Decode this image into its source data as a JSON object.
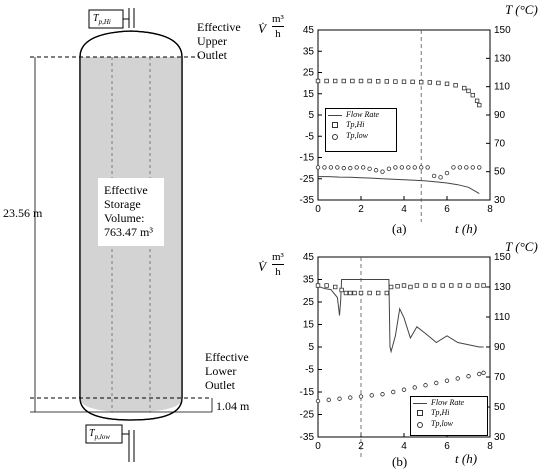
{
  "tank": {
    "sensor_top": "T",
    "sensor_top_sub": "p,Hi",
    "sensor_bottom": "T",
    "sensor_bottom_sub": "p,low",
    "upper_outlet": [
      "Effective",
      "Upper",
      "Outlet"
    ],
    "lower_outlet": [
      "Effective",
      "Lower",
      "Outlet"
    ],
    "volume_label": [
      "Effective",
      "Storage",
      "Volume:",
      "763.47 m³"
    ],
    "height_label": "23.56 m",
    "bottom_offset_label": "1.04 m"
  },
  "charts": {
    "a": {
      "panel_label": "(a)",
      "xlabel": "t (h)",
      "left_label": "V̇",
      "unit_top": "m³",
      "unit_bottom": "h",
      "right_label": "T (°C)",
      "legend": [
        "Flow Rate",
        "Tp,Hi",
        "Tp,low"
      ],
      "colors": {
        "line": "#444444",
        "marker": "#333333",
        "dashed": "#555555"
      }
    },
    "b": {
      "panel_label": "(b)",
      "xlabel": "t (h)",
      "left_label": "V̇",
      "unit_top": "m³",
      "unit_bottom": "h",
      "right_label": "T (°C)",
      "legend": [
        "Flow Rate",
        "Tp,Hi",
        "Tp,low"
      ]
    }
  },
  "chart_data": [
    {
      "type": "line",
      "panel": "(a)",
      "x_ticks": [
        0,
        2,
        4,
        6,
        8
      ],
      "y_left_ticks": [
        -35,
        -25,
        -15,
        -5,
        5,
        15,
        25,
        35,
        45
      ],
      "y_right_ticks": [
        30,
        50,
        70,
        90,
        110,
        130,
        150
      ],
      "xlim": [
        0,
        8
      ],
      "ylim_left": [
        -35,
        45
      ],
      "ylim_right": [
        30,
        150
      ],
      "vline_x": 4.8,
      "series": [
        {
          "name": "Flow Rate",
          "axis": "left",
          "style": "line",
          "x": [
            0,
            0.5,
            1,
            1.5,
            2,
            2.5,
            3,
            3.5,
            4,
            4.5,
            5,
            5.5,
            6,
            6.5,
            7,
            7.5
          ],
          "y": [
            -24,
            -24,
            -24.2,
            -24.3,
            -24.5,
            -24.7,
            -25,
            -25.2,
            -25.5,
            -25.7,
            -26,
            -26.5,
            -27,
            -27.8,
            -29,
            -32
          ]
        },
        {
          "name": "Tp,Hi",
          "axis": "right",
          "style": "square",
          "x": [
            0,
            0.4,
            0.8,
            1.2,
            1.6,
            2,
            2.4,
            2.8,
            3.2,
            3.6,
            4,
            4.4,
            4.8,
            5.2,
            5.6,
            6,
            6.4,
            6.8,
            7,
            7.2,
            7.4,
            7.5
          ],
          "y": [
            114,
            114,
            114,
            114,
            114,
            114,
            114,
            113.8,
            113.7,
            113.6,
            113.5,
            113.4,
            113.2,
            113,
            112.6,
            112,
            111,
            109,
            107,
            104,
            100,
            97
          ]
        },
        {
          "name": "Tp,low",
          "axis": "right",
          "style": "circle",
          "x": [
            0,
            0.3,
            0.6,
            0.9,
            1.2,
            1.5,
            1.8,
            2.1,
            2.4,
            2.7,
            3,
            3.3,
            3.6,
            3.9,
            4.2,
            4.5,
            4.8,
            5.1,
            5.4,
            5.7,
            6,
            6.3,
            6.6,
            6.9,
            7.2,
            7.5
          ],
          "y": [
            53,
            53,
            53,
            53,
            52.5,
            52.5,
            53,
            53,
            52,
            51,
            50,
            52,
            53,
            53,
            53,
            53,
            53,
            53,
            47,
            46,
            49,
            53,
            53,
            53,
            53,
            53
          ]
        }
      ]
    },
    {
      "type": "line",
      "panel": "(b)",
      "x_ticks": [
        0,
        2,
        4,
        6,
        8
      ],
      "y_left_ticks": [
        -35,
        -25,
        -15,
        -5,
        5,
        15,
        25,
        35,
        45
      ],
      "y_right_ticks": [
        30,
        50,
        70,
        90,
        110,
        130,
        150
      ],
      "xlim": [
        0,
        8
      ],
      "ylim_left": [
        -35,
        45
      ],
      "ylim_right": [
        30,
        150
      ],
      "vline_x": 2,
      "series": [
        {
          "name": "Flow Rate",
          "axis": "left",
          "style": "line",
          "x": [
            0,
            0.3,
            0.6,
            0.9,
            1.0,
            1.05,
            1.1,
            1.2,
            1.5,
            2,
            2.5,
            3,
            3.3,
            3.35,
            3.4,
            3.6,
            3.8,
            4,
            4.3,
            4.6,
            5,
            5.5,
            6,
            6.5,
            7,
            7.5,
            7.7
          ],
          "y": [
            32,
            31,
            30.5,
            27,
            19,
            25,
            35,
            35,
            35,
            35,
            35,
            35,
            35,
            5,
            3,
            10,
            22,
            18,
            9,
            14,
            11,
            7,
            10,
            7,
            6,
            5,
            5
          ]
        },
        {
          "name": "Tp,Hi",
          "axis": "right",
          "style": "square",
          "x": [
            0,
            0.4,
            0.8,
            1.1,
            1.3,
            1.5,
            1.7,
            2,
            2.4,
            2.8,
            3.2,
            3.4,
            3.7,
            4,
            4.3,
            4.6,
            5,
            5.4,
            5.8,
            6.2,
            6.6,
            7,
            7.4,
            7.7
          ],
          "y": [
            131,
            131,
            130,
            128,
            126,
            126,
            126,
            126,
            126,
            126,
            126,
            130,
            130.5,
            131,
            130,
            131,
            131,
            131,
            131,
            131,
            131,
            131,
            131,
            131
          ]
        },
        {
          "name": "Tp,low",
          "axis": "right",
          "style": "circle",
          "x": [
            0,
            0.5,
            1,
            1.5,
            2,
            2.5,
            3,
            3.5,
            4,
            4.5,
            5,
            5.5,
            6,
            6.5,
            7,
            7.5,
            7.7
          ],
          "y": [
            -19,
            -18.5,
            -18,
            -17.5,
            -17,
            -16.5,
            -16,
            -15,
            -14,
            -13,
            -12,
            -11,
            -10,
            -9,
            -8,
            -7,
            -6.5
          ],
          "y_axis_note": "left"
        }
      ]
    }
  ]
}
